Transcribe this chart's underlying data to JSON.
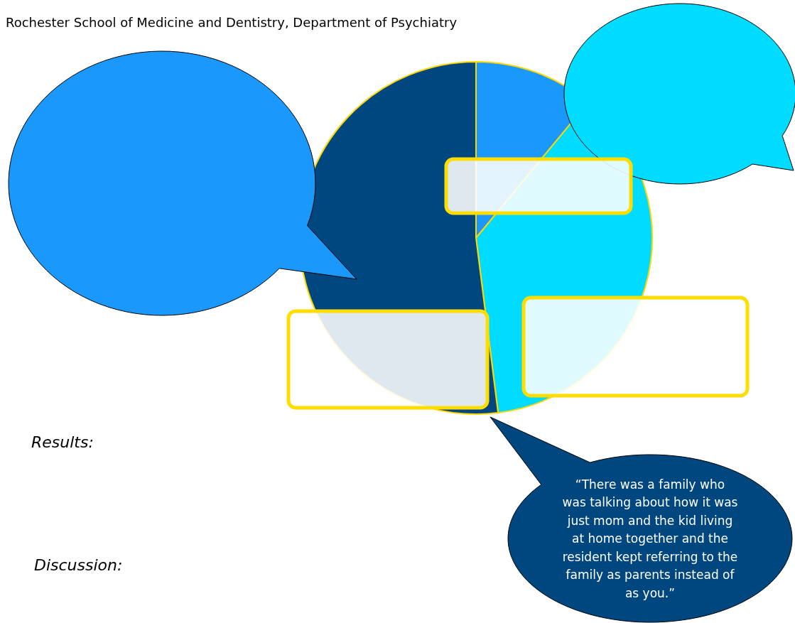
{
  "chart_data": {
    "type": "pie",
    "title": "Rochester School of Medicine and Dentistry, Department of Psychiatry",
    "categories": [
      null,
      null,
      null
    ],
    "values": [
      11,
      37,
      52
    ],
    "colors": [
      "#1a98fc",
      "#00dcff",
      "#00467f"
    ],
    "annotations": [
      "Results:",
      "Discussion:",
      "“There was a family who was talking about how it was just mom and the kid living at home together and the resident kept referring to the family as parents instead of as you.”"
    ]
  }
}
